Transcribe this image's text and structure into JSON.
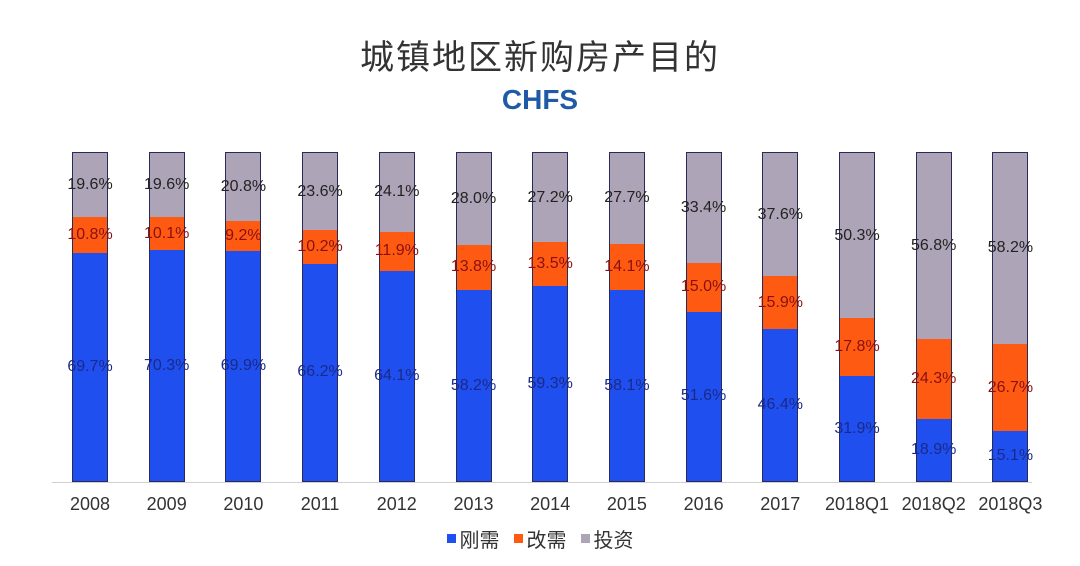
{
  "chart_data": {
    "type": "bar",
    "stacked": true,
    "title": "城镇地区新购房产目的",
    "subtitle": "CHFS",
    "xlabel": "",
    "ylabel": "",
    "ylim": [
      0,
      100
    ],
    "grid": false,
    "legend_position": "bottom",
    "categories": [
      "2008",
      "2009",
      "2010",
      "2011",
      "2012",
      "2013",
      "2014",
      "2015",
      "2016",
      "2017",
      "2018Q1",
      "2018Q2",
      "2018Q3"
    ],
    "series": [
      {
        "name": "刚需",
        "color": "#1f4fee",
        "values": [
          69.7,
          70.3,
          69.9,
          66.2,
          64.1,
          58.2,
          59.3,
          58.1,
          51.6,
          46.4,
          31.9,
          18.9,
          15.1
        ]
      },
      {
        "name": "改需",
        "color": "#ff5a12",
        "values": [
          10.8,
          10.1,
          9.2,
          10.2,
          11.9,
          13.8,
          13.5,
          14.1,
          15.0,
          15.9,
          17.8,
          24.3,
          26.7
        ]
      },
      {
        "name": "投资",
        "color": "#aea4b8",
        "values": [
          19.6,
          19.6,
          20.8,
          23.6,
          24.1,
          28.0,
          27.2,
          27.7,
          33.4,
          37.6,
          50.3,
          56.8,
          58.2
        ]
      }
    ]
  }
}
